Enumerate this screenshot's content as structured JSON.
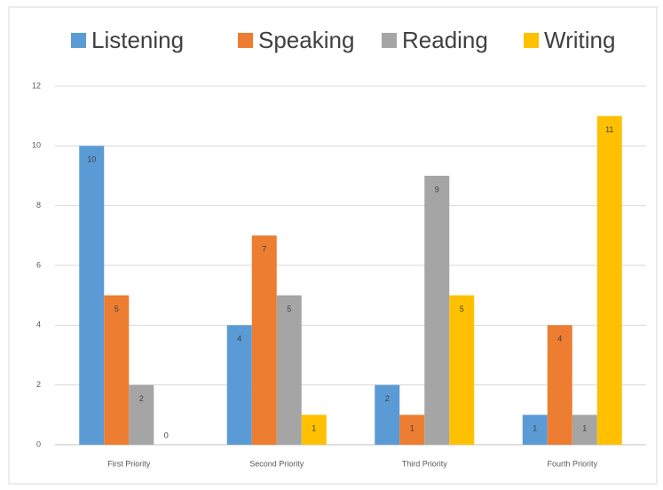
{
  "chart_data": {
    "type": "bar",
    "categories": [
      "First Priority",
      "Second Priority",
      "Third Priority",
      "Fourth Priority"
    ],
    "series": [
      {
        "name": "Listening",
        "color": "#5b9bd5",
        "values": [
          10,
          4,
          2,
          1
        ]
      },
      {
        "name": "Speaking",
        "color": "#ed7d31",
        "values": [
          5,
          7,
          1,
          4
        ]
      },
      {
        "name": "Reading",
        "color": "#a5a5a5",
        "values": [
          2,
          5,
          9,
          1
        ]
      },
      {
        "name": "Writing",
        "color": "#ffc000",
        "values": [
          0,
          1,
          5,
          11
        ]
      }
    ],
    "ylim": [
      0,
      12
    ],
    "yticks": [
      0,
      2,
      4,
      6,
      8,
      10,
      12
    ],
    "grid": true,
    "legend": "top"
  }
}
